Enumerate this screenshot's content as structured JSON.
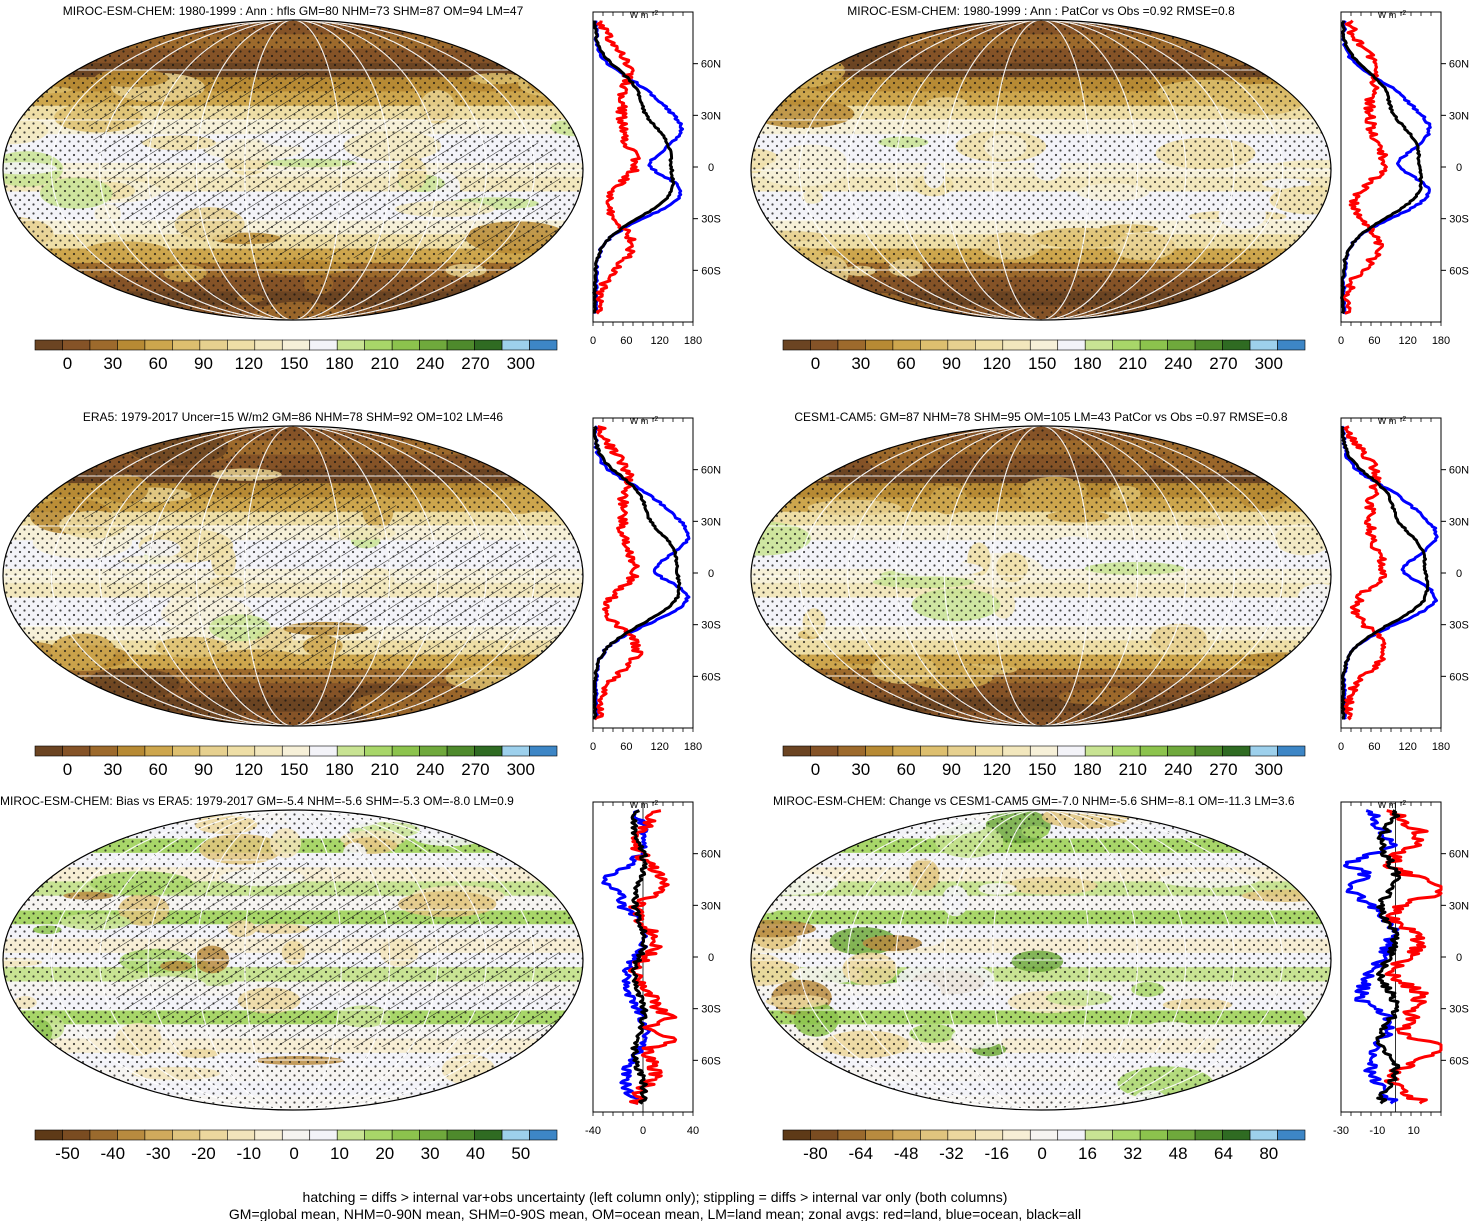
{
  "figure": {
    "footnote_line1": "hatching = diffs > internal var+obs uncertainty (left column only); stippling = diffs > internal var only (both columns)",
    "footnote_line2": "GM=global mean, NHM=0-90N mean, SHM=0-90S mean, OM=ocean mean, LM=land mean; zonal avgs: red=land, blue=ocean, black=all"
  },
  "palettes": {
    "abs": [
      "#6b4422",
      "#855327",
      "#9d6a2c",
      "#b78a34",
      "#cda64d",
      "#ddbf6f",
      "#e6d08f",
      "#eedea6",
      "#f2e7bd",
      "#f6f0d8",
      "#f3f3f8",
      "#c8e393",
      "#a8d669",
      "#8cc34d",
      "#6fa93c",
      "#4e8a2c",
      "#2f6b22",
      "#9dd0ec",
      "#3d86c6"
    ],
    "diff": [
      "#5e3a17",
      "#7a4c21",
      "#9a6a2d",
      "#b88b3f",
      "#d0aa5c",
      "#e0c47e",
      "#ecd79e",
      "#f2e4bb",
      "#f7eed5",
      "#f6f4f1",
      "#f3f3f8",
      "#c8e393",
      "#a8d669",
      "#8cc34d",
      "#6fa93c",
      "#4e8a2c",
      "#2f6b22",
      "#9dd0ec",
      "#3d86c6"
    ],
    "land_color": "#ff0000",
    "ocean_color": "#0000ff",
    "all_color": "#000000"
  },
  "chart_data": [
    {
      "type": "heatmap",
      "title": "MIROC-ESM-CHEM: 1980-1999 : Ann : hfls GM=80 NHM=73 SHM=87 OM=94 LM=47",
      "colorbar": {
        "ticks": [
          "0",
          "30",
          "60",
          "90",
          "120",
          "150",
          "180",
          "210",
          "240",
          "270",
          "300"
        ],
        "palette": "abs"
      },
      "map": {
        "field": "abs",
        "hatching": true,
        "stippling": true
      },
      "zonal": {
        "unit_top": "W m",
        "unit_sup": "-2",
        "xlim": [
          0,
          180
        ],
        "xticks": [
          "0",
          "60",
          "120",
          "180"
        ],
        "lat_ticks": [
          "60N",
          "30N",
          "0",
          "30S",
          "60S"
        ],
        "zero_line": false,
        "pattern": "abs1"
      }
    },
    {
      "type": "heatmap",
      "title": "MIROC-ESM-CHEM: 1980-1999 : Ann : PatCor vs Obs =0.92 RMSE=0.8",
      "colorbar": {
        "ticks": [
          "0",
          "30",
          "60",
          "90",
          "120",
          "150",
          "180",
          "210",
          "240",
          "270",
          "300"
        ],
        "palette": "abs"
      },
      "map": {
        "field": "abs",
        "hatching": false,
        "stippling": true
      },
      "zonal": {
        "unit_top": "W m",
        "unit_sup": "-2",
        "xlim": [
          0,
          180
        ],
        "xticks": [
          "0",
          "60",
          "120",
          "180"
        ],
        "lat_ticks": [
          "60N",
          "30N",
          "0",
          "30S",
          "60S"
        ],
        "zero_line": false,
        "pattern": "abs1"
      }
    },
    {
      "type": "heatmap",
      "title": "ERA5: 1979-2017 Uncer=15 W/m2 GM=86 NHM=78 SHM=92 OM=102 LM=46",
      "colorbar": {
        "ticks": [
          "0",
          "30",
          "60",
          "90",
          "120",
          "150",
          "180",
          "210",
          "240",
          "270",
          "300"
        ],
        "palette": "abs"
      },
      "map": {
        "field": "abs",
        "hatching": true,
        "stippling": true
      },
      "zonal": {
        "unit_top": "W m",
        "unit_sup": "-2",
        "xlim": [
          0,
          180
        ],
        "xticks": [
          "0",
          "60",
          "120",
          "180"
        ],
        "lat_ticks": [
          "60N",
          "30N",
          "0",
          "30S",
          "60S"
        ],
        "zero_line": false,
        "pattern": "abs2"
      }
    },
    {
      "type": "heatmap",
      "title": "CESM1-CAM5: GM=87 NHM=78 SHM=95 OM=105 LM=43 PatCor vs Obs =0.97 RMSE=0.8",
      "colorbar": {
        "ticks": [
          "0",
          "30",
          "60",
          "90",
          "120",
          "150",
          "180",
          "210",
          "240",
          "270",
          "300"
        ],
        "palette": "abs"
      },
      "map": {
        "field": "abs",
        "hatching": false,
        "stippling": true
      },
      "zonal": {
        "unit_top": "W m",
        "unit_sup": "-2",
        "xlim": [
          0,
          180
        ],
        "xticks": [
          "0",
          "60",
          "120",
          "180"
        ],
        "lat_ticks": [
          "60N",
          "30N",
          "0",
          "30S",
          "60S"
        ],
        "zero_line": false,
        "pattern": "abs2"
      }
    },
    {
      "type": "heatmap",
      "title": "MIROC-ESM-CHEM: Bias vs ERA5: 1979-2017 GM=-5.4 NHM=-5.6 SHM=-5.3 OM=-8.0 LM=0.9",
      "colorbar": {
        "ticks": [
          "-50",
          "-40",
          "-30",
          "-20",
          "-10",
          "0",
          "10",
          "20",
          "30",
          "40",
          "50"
        ],
        "palette": "diff"
      },
      "map": {
        "field": "diff",
        "hatching": true,
        "stippling": true
      },
      "zonal": {
        "unit_top": "W m",
        "unit_sup": "-2",
        "xlim": [
          -40,
          40
        ],
        "xticks": [
          "-40",
          "0",
          "40"
        ],
        "lat_ticks": [
          "60N",
          "30N",
          "0",
          "30S",
          "60S"
        ],
        "zero_line": true,
        "pattern": "diff1"
      }
    },
    {
      "type": "heatmap",
      "title": "MIROC-ESM-CHEM: Change vs CESM1-CAM5 GM=-7.0 NHM=-5.6 SHM=-8.1 OM=-11.3 LM=3.6",
      "colorbar": {
        "ticks": [
          "-80",
          "-64",
          "-48",
          "-32",
          "-16",
          "0",
          "16",
          "32",
          "48",
          "64",
          "80"
        ],
        "palette": "diff"
      },
      "map": {
        "field": "diff",
        "hatching": false,
        "stippling": true
      },
      "zonal": {
        "unit_top": "W m",
        "unit_sup": "-2",
        "xlim": [
          -30,
          25
        ],
        "xticks": [
          "-30",
          "-10",
          "10"
        ],
        "lat_ticks": [
          "60N",
          "30N",
          "0",
          "30S",
          "60S"
        ],
        "zero_line": true,
        "pattern": "diff2"
      }
    }
  ]
}
